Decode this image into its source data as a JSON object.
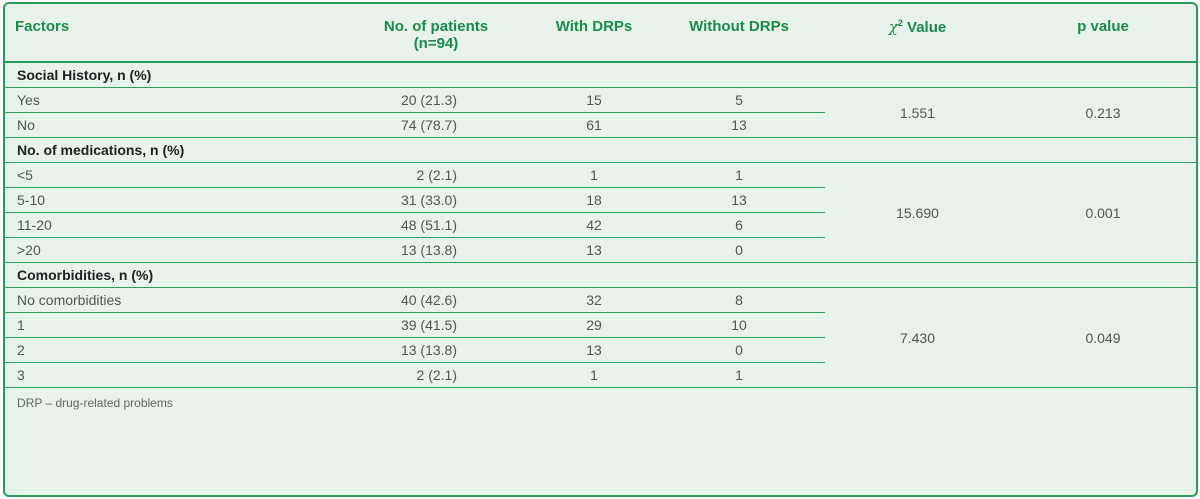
{
  "header": {
    "factors": "Factors",
    "patients": "No. of patients",
    "patients_n": "(n=94)",
    "with_drps": "With DRPs",
    "without_drps": "Without DRPs",
    "chi_symbol": "χ",
    "chi_sup": "2",
    "chi_value": "Value",
    "p_value": "p value"
  },
  "sections": [
    {
      "title": "Social History, n (%)",
      "chi": "1.551",
      "p": "0.213",
      "rows": [
        {
          "label": "Yes",
          "patients": "20 (21.3)",
          "with": "15",
          "without": "5"
        },
        {
          "label": "No",
          "patients": "74 (78.7)",
          "with": "61",
          "without": "13"
        }
      ]
    },
    {
      "title": "No. of medications, n (%)",
      "chi": "15.690",
      "p": "0.001",
      "rows": [
        {
          "label": "<5",
          "patients": "2 (2.1)",
          "with": "1",
          "without": "1"
        },
        {
          "label": "5-10",
          "patients": "31 (33.0)",
          "with": "18",
          "without": "13"
        },
        {
          "label": "11-20",
          "patients": "48 (51.1)",
          "with": "42",
          "without": "6"
        },
        {
          "label": ">20",
          "patients": "13 (13.8)",
          "with": "13",
          "without": "0"
        }
      ]
    },
    {
      "title": "Comorbidities, n (%)",
      "chi": "7.430",
      "p": "0.049",
      "rows": [
        {
          "label": "No comorbidities",
          "patients": "40 (42.6)",
          "with": "32",
          "without": "8"
        },
        {
          "label": "1",
          "patients": "39 (41.5)",
          "with": "29",
          "without": "10"
        },
        {
          "label": "2",
          "patients": "13 (13.8)",
          "with": "13",
          "without": "0"
        },
        {
          "label": "3",
          "patients": "2 (2.1)",
          "with": "1",
          "without": "1"
        }
      ]
    }
  ],
  "footnote": "DRP – drug-related problems",
  "colors": {
    "accent": "#2e9a5c",
    "header_text": "#1e8a4d",
    "background": "#e6f2ea"
  }
}
